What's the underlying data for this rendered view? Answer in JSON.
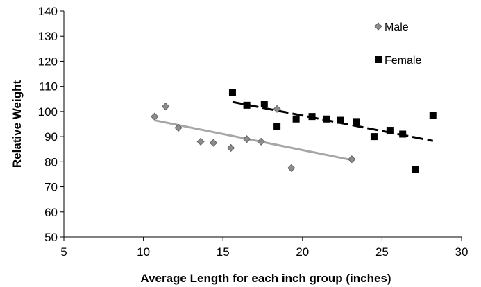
{
  "chart_data": {
    "type": "scatter",
    "title": "",
    "xlabel": "Average Length for each inch group (inches)",
    "ylabel": "Relative Weight",
    "xlim": [
      5,
      30
    ],
    "ylim": [
      50,
      140
    ],
    "xticks": [
      5,
      10,
      15,
      20,
      25,
      30
    ],
    "yticks": [
      50,
      60,
      70,
      80,
      90,
      100,
      110,
      120,
      130,
      140
    ],
    "grid": false,
    "legend_position": "top-right",
    "series": [
      {
        "name": "Male",
        "marker": "diamond",
        "color": "#8c8c8c",
        "points": [
          [
            10.7,
            98
          ],
          [
            11.4,
            102
          ],
          [
            12.2,
            93.5
          ],
          [
            13.6,
            88
          ],
          [
            14.4,
            87.5
          ],
          [
            15.5,
            85.5
          ],
          [
            16.5,
            89
          ],
          [
            17.4,
            88
          ],
          [
            18.4,
            101
          ],
          [
            19.3,
            77.5
          ],
          [
            23.1,
            81
          ]
        ],
        "trendline": {
          "x": [
            10.7,
            23.1
          ],
          "y": [
            96.5,
            80.7
          ],
          "color": "#a6a6a6",
          "style": "solid"
        }
      },
      {
        "name": "Female",
        "marker": "square",
        "color": "#000000",
        "points": [
          [
            15.6,
            107.5
          ],
          [
            16.5,
            102.5
          ],
          [
            17.6,
            103
          ],
          [
            18.4,
            94
          ],
          [
            19.6,
            97
          ],
          [
            20.6,
            98
          ],
          [
            21.5,
            97
          ],
          [
            22.4,
            96.5
          ],
          [
            23.4,
            96
          ],
          [
            24.5,
            90
          ],
          [
            25.5,
            92.5
          ],
          [
            26.3,
            91
          ],
          [
            27.1,
            77
          ],
          [
            28.2,
            98.5
          ]
        ],
        "trendline": {
          "x": [
            15.6,
            28.2
          ],
          "y": [
            103.8,
            88.3
          ],
          "color": "#000000",
          "style": "dashed"
        }
      }
    ]
  }
}
